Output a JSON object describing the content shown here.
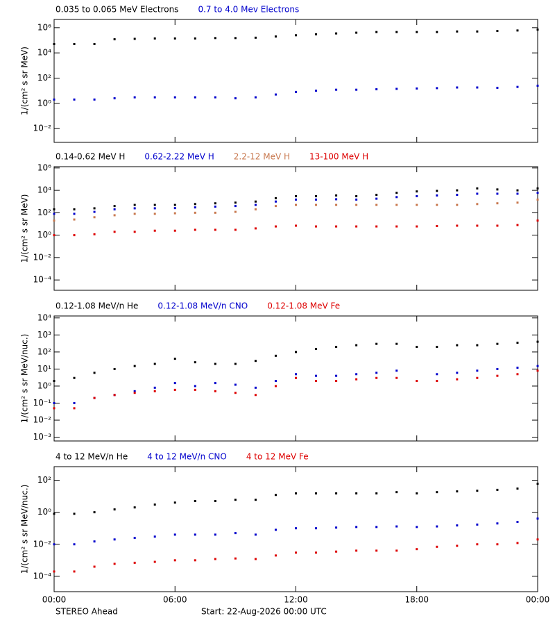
{
  "chart_data": [
    {
      "type": "scatter",
      "ylabel": "1/(cm² s sr MeV)",
      "log_y": true,
      "xlim": [
        0,
        24
      ],
      "xticks": [
        0,
        6,
        12,
        18,
        24
      ],
      "ylim": [
        0.0008,
        4500000
      ],
      "yticks": [
        {
          "value": 0.01,
          "label": "10⁻²"
        },
        {
          "value": 1,
          "label": "10⁰"
        },
        {
          "value": 100,
          "label": "10²"
        },
        {
          "value": 10000,
          "label": "10⁴"
        },
        {
          "value": 1000000,
          "label": "10⁶"
        }
      ],
      "x": [
        0,
        1,
        2,
        3,
        4,
        5,
        6,
        7,
        8,
        9,
        10,
        11,
        12,
        13,
        14,
        15,
        16,
        17,
        18,
        19,
        20,
        21,
        22,
        23,
        24
      ],
      "series": [
        {
          "name": "0.035 to 0.065 MeV Electrons",
          "color": "#000000",
          "values": [
            50000,
            50000,
            50000,
            120000,
            130000,
            140000,
            140000,
            140000,
            150000,
            150000,
            160000,
            200000,
            250000,
            300000,
            350000,
            400000,
            450000,
            450000,
            450000,
            450000,
            500000,
            500000,
            550000,
            600000,
            700000
          ]
        },
        {
          "name": "0.7 to 4.0 Mev Electrons",
          "color": "#0000cc",
          "values": [
            2,
            2,
            2,
            2.5,
            3,
            3,
            3,
            3,
            3,
            2.5,
            3,
            5,
            8,
            10,
            12,
            12,
            13,
            14,
            15,
            16,
            18,
            18,
            17,
            20,
            25
          ]
        }
      ]
    },
    {
      "type": "scatter",
      "ylabel": "1/(cm² s sr MeV)",
      "log_y": true,
      "xlim": [
        0,
        24
      ],
      "xticks": [
        0,
        6,
        12,
        18,
        24
      ],
      "ylim": [
        1.2e-05,
        1300000
      ],
      "yticks": [
        {
          "value": 0.0001,
          "label": "10⁻⁴"
        },
        {
          "value": 0.01,
          "label": "10⁻²"
        },
        {
          "value": 1,
          "label": "10⁰"
        },
        {
          "value": 100,
          "label": "10²"
        },
        {
          "value": 10000,
          "label": "10⁴"
        },
        {
          "value": 1000000,
          "label": "10⁶"
        }
      ],
      "x": [
        0,
        1,
        2,
        3,
        4,
        5,
        6,
        7,
        8,
        9,
        10,
        11,
        12,
        13,
        14,
        15,
        16,
        17,
        18,
        19,
        20,
        21,
        22,
        23,
        24
      ],
      "series": [
        {
          "name": "0.14-0.62 MeV H",
          "color": "#000000",
          "values": [
            200,
            200,
            250,
            400,
            500,
            500,
            500,
            600,
            700,
            800,
            1000,
            2000,
            3000,
            3000,
            3500,
            3000,
            4000,
            6000,
            8000,
            9000,
            10000,
            15000,
            12000,
            10000,
            15000
          ]
        },
        {
          "name": "0.62-2.22 MeV H",
          "color": "#0000cc",
          "values": [
            80,
            80,
            120,
            200,
            250,
            250,
            260,
            300,
            350,
            400,
            500,
            1000,
            1500,
            1500,
            1600,
            1500,
            1800,
            2500,
            3000,
            3500,
            4000,
            5000,
            5000,
            5000,
            6000
          ]
        },
        {
          "name": "2.2-12 MeV H",
          "color": "#c8784e",
          "values": [
            20,
            25,
            40,
            60,
            80,
            80,
            90,
            100,
            100,
            120,
            200,
            400,
            500,
            500,
            500,
            500,
            500,
            500,
            500,
            500,
            500,
            600,
            700,
            800,
            1500
          ]
        },
        {
          "name": "13-100 MeV H",
          "color": "#dd0000",
          "values": [
            1,
            1,
            1.2,
            2,
            2,
            2.5,
            2.5,
            3,
            3,
            3,
            4,
            6,
            7,
            6,
            6,
            6,
            6,
            6,
            6,
            6.5,
            7,
            7,
            7,
            8,
            20
          ]
        }
      ]
    },
    {
      "type": "scatter",
      "ylabel": "1/(cm² s sr MeV/nuc.)",
      "log_y": true,
      "xlim": [
        0,
        24
      ],
      "xticks": [
        0,
        6,
        12,
        18,
        24
      ],
      "ylim": [
        0.0006,
        13000
      ],
      "yticks": [
        {
          "value": 0.001,
          "label": "10⁻³"
        },
        {
          "value": 0.01,
          "label": "10⁻²"
        },
        {
          "value": 0.1,
          "label": "10⁻¹"
        },
        {
          "value": 1,
          "label": "10⁰"
        },
        {
          "value": 10,
          "label": "10¹"
        },
        {
          "value": 100,
          "label": "10²"
        },
        {
          "value": 1000,
          "label": "10³"
        },
        {
          "value": 10000,
          "label": "10⁴"
        }
      ],
      "x": [
        0,
        1,
        2,
        3,
        4,
        5,
        6,
        7,
        8,
        9,
        10,
        11,
        12,
        13,
        14,
        15,
        16,
        17,
        18,
        19,
        20,
        21,
        22,
        23,
        24
      ],
      "series": [
        {
          "name": "0.12-1.08 MeV/n He",
          "color": "#000000",
          "values": [
            2,
            3,
            6,
            10,
            15,
            20,
            40,
            25,
            20,
            20,
            30,
            60,
            100,
            150,
            200,
            250,
            300,
            300,
            200,
            200,
            250,
            250,
            300,
            350,
            400
          ]
        },
        {
          "name": "0.12-1.08 MeV/n CNO",
          "color": "#0000cc",
          "values": [
            0.1,
            0.1,
            0.2,
            0.3,
            0.5,
            0.8,
            1.5,
            1,
            1.5,
            1.2,
            0.8,
            2,
            5,
            4,
            4,
            5,
            6,
            8,
            null,
            5,
            6,
            8,
            10,
            12,
            15
          ]
        },
        {
          "name": "0.12-1.08 MeV Fe",
          "color": "#dd0000",
          "values": [
            0.05,
            0.05,
            0.2,
            0.3,
            0.4,
            0.5,
            0.6,
            0.6,
            0.5,
            0.4,
            0.3,
            1,
            3,
            2,
            2,
            2.5,
            3,
            3,
            2,
            2,
            2.5,
            3,
            4,
            5,
            8
          ]
        }
      ]
    },
    {
      "type": "scatter",
      "ylabel": "1/(cm² s sr MeV/nuc.)",
      "log_y": true,
      "xlim": [
        0,
        24
      ],
      "xticks": [
        {
          "value": 0,
          "label": "00:00"
        },
        {
          "value": 6,
          "label": "06:00"
        },
        {
          "value": 12,
          "label": "12:00"
        },
        {
          "value": 18,
          "label": "18:00"
        },
        {
          "value": 24,
          "label": "00:00"
        }
      ],
      "ylim": [
        1.1e-05,
        700
      ],
      "yticks": [
        {
          "value": 0.0001,
          "label": "10⁻⁴"
        },
        {
          "value": 0.01,
          "label": "10⁻²"
        },
        {
          "value": 1,
          "label": "10⁰"
        },
        {
          "value": 100,
          "label": "10²"
        }
      ],
      "x": [
        0,
        1,
        2,
        3,
        4,
        5,
        6,
        7,
        8,
        9,
        10,
        11,
        12,
        13,
        14,
        15,
        16,
        17,
        18,
        19,
        20,
        21,
        22,
        23,
        24
      ],
      "series": [
        {
          "name": "4 to 12 MeV/n He",
          "color": "#000000",
          "values": [
            0.8,
            0.8,
            1,
            1.5,
            2,
            3,
            4,
            5,
            5,
            6,
            6,
            12,
            15,
            15,
            15,
            15,
            15,
            18,
            15,
            18,
            20,
            22,
            25,
            30,
            60
          ]
        },
        {
          "name": "4 to 12 MeV/n CNO",
          "color": "#0000cc",
          "values": [
            0.01,
            0.01,
            0.015,
            0.02,
            0.025,
            0.03,
            0.04,
            0.04,
            0.04,
            0.05,
            0.04,
            0.08,
            0.1,
            0.1,
            0.11,
            0.12,
            0.12,
            0.13,
            0.12,
            0.13,
            0.15,
            0.17,
            0.2,
            0.25,
            0.4
          ]
        },
        {
          "name": "4 to 12 MeV Fe",
          "color": "#dd0000",
          "values": [
            0.0002,
            0.0002,
            0.0004,
            0.0006,
            0.0007,
            0.0008,
            0.001,
            0.001,
            0.0012,
            0.0013,
            0.0012,
            0.002,
            0.003,
            0.003,
            0.0035,
            0.004,
            0.004,
            0.004,
            0.005,
            0.007,
            0.008,
            0.01,
            0.01,
            0.012,
            0.02
          ]
        }
      ]
    }
  ],
  "footer": {
    "left": "STEREO Ahead",
    "center": "Start: 22-Aug-2026 00:00 UTC"
  }
}
